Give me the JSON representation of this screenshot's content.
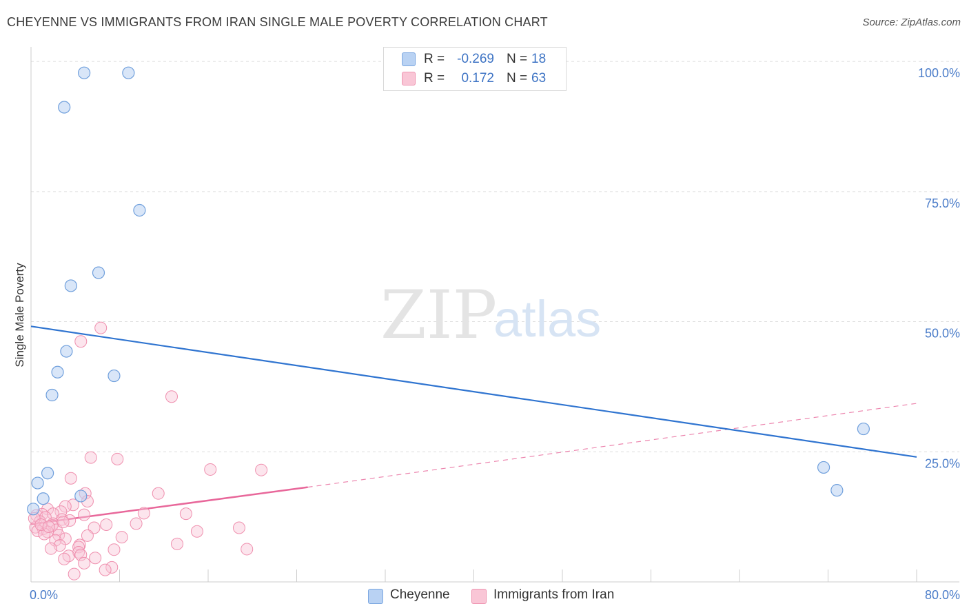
{
  "title": "CHEYENNE VS IMMIGRANTS FROM IRAN SINGLE MALE POVERTY CORRELATION CHART",
  "source": "Source: ZipAtlas.com",
  "watermark": {
    "zip": "ZIP",
    "atlas": "atlas"
  },
  "stats": [
    {
      "r_label": "R = ",
      "r_value": "-0.269",
      "n_label": "N = ",
      "n_value": "18",
      "fill": "#b9d2f3",
      "border": "#7aa6e0"
    },
    {
      "r_label": "R = ",
      "r_value": "0.172",
      "n_label": "N = ",
      "n_value": "63",
      "fill": "#f9c6d6",
      "border": "#ef94b1"
    }
  ],
  "legend": [
    {
      "label": "Cheyenne",
      "fill": "#b9d2f3",
      "border": "#7aa6e0"
    },
    {
      "label": "Immigrants from Iran",
      "fill": "#f9c6d6",
      "border": "#ef94b1"
    }
  ],
  "colors": {
    "blue_fill": "rgba(185,210,243,0.55)",
    "blue_stroke": "#6f9fdc",
    "blue_line": "#2f74d0",
    "pink_fill": "rgba(249,198,214,0.45)",
    "pink_stroke": "#ef8fae",
    "pink_line": "#e8679a",
    "grid": "#dddddd",
    "axis": "#cccccc"
  },
  "chart_data": {
    "type": "scatter",
    "title": "CHEYENNE VS IMMIGRANTS FROM IRAN SINGLE MALE POVERTY CORRELATION CHART",
    "xlabel": "",
    "ylabel": "Single Male Poverty",
    "xlim": [
      0,
      80
    ],
    "ylim": [
      0,
      102
    ],
    "x_tick_labels": [
      {
        "value": 0,
        "label": "0.0%"
      },
      {
        "value": 80,
        "label": "80.0%"
      }
    ],
    "y_tick_labels": [
      {
        "value": 25,
        "label": "25.0%"
      },
      {
        "value": 50,
        "label": "50.0%"
      },
      {
        "value": 75,
        "label": "75.0%"
      },
      {
        "value": 100,
        "label": "100.0%"
      }
    ],
    "y_gridlines": [
      25,
      50,
      75,
      100
    ],
    "series": [
      {
        "name": "Cheyenne",
        "points": [
          [
            4.8,
            97.8
          ],
          [
            8.8,
            97.8
          ],
          [
            3.0,
            91.2
          ],
          [
            9.8,
            71.4
          ],
          [
            6.1,
            59.4
          ],
          [
            3.6,
            56.9
          ],
          [
            3.2,
            44.3
          ],
          [
            2.4,
            40.3
          ],
          [
            7.5,
            39.6
          ],
          [
            1.9,
            35.9
          ],
          [
            1.5,
            20.9
          ],
          [
            0.6,
            19.0
          ],
          [
            1.1,
            16.0
          ],
          [
            4.5,
            16.5
          ],
          [
            0.2,
            14.0
          ],
          [
            71.6,
            22.0
          ],
          [
            75.2,
            29.4
          ],
          [
            72.8,
            17.6
          ]
        ],
        "trend": {
          "x": [
            0,
            80
          ],
          "y": [
            49.1,
            24.0
          ]
        }
      },
      {
        "name": "Immigrants from Iran",
        "points": [
          [
            6.3,
            48.8
          ],
          [
            4.5,
            46.2
          ],
          [
            12.7,
            35.6
          ],
          [
            5.4,
            23.9
          ],
          [
            7.8,
            23.6
          ],
          [
            16.2,
            21.6
          ],
          [
            20.8,
            21.5
          ],
          [
            3.6,
            19.9
          ],
          [
            11.5,
            17.0
          ],
          [
            4.9,
            17.0
          ],
          [
            5.1,
            15.5
          ],
          [
            3.8,
            14.8
          ],
          [
            3.1,
            14.5
          ],
          [
            1.5,
            14.0
          ],
          [
            2.7,
            13.5
          ],
          [
            1.0,
            13.0
          ],
          [
            2.0,
            13.1
          ],
          [
            10.2,
            13.2
          ],
          [
            14.0,
            13.1
          ],
          [
            4.8,
            12.9
          ],
          [
            0.5,
            12.8
          ],
          [
            1.3,
            12.4
          ],
          [
            2.8,
            12.0
          ],
          [
            3.5,
            11.8
          ],
          [
            0.8,
            11.6
          ],
          [
            2.0,
            11.2
          ],
          [
            6.8,
            11.0
          ],
          [
            1.9,
            10.8
          ],
          [
            9.5,
            11.2
          ],
          [
            0.4,
            10.5
          ],
          [
            1.1,
            10.2
          ],
          [
            5.7,
            10.4
          ],
          [
            18.8,
            10.4
          ],
          [
            2.3,
            10.0
          ],
          [
            0.6,
            9.8
          ],
          [
            1.5,
            9.6
          ],
          [
            15.0,
            9.7
          ],
          [
            1.2,
            9.2
          ],
          [
            2.5,
            9.0
          ],
          [
            5.1,
            8.9
          ],
          [
            8.2,
            8.6
          ],
          [
            3.1,
            8.3
          ],
          [
            2.2,
            8.0
          ],
          [
            13.2,
            7.3
          ],
          [
            4.4,
            7.1
          ],
          [
            2.6,
            7.0
          ],
          [
            4.3,
            6.7
          ],
          [
            1.8,
            6.4
          ],
          [
            7.5,
            6.2
          ],
          [
            19.5,
            6.3
          ],
          [
            4.3,
            5.7
          ],
          [
            4.5,
            5.2
          ],
          [
            3.4,
            5.0
          ],
          [
            5.8,
            4.6
          ],
          [
            3.0,
            4.4
          ],
          [
            4.8,
            3.6
          ],
          [
            7.3,
            2.8
          ],
          [
            6.7,
            2.3
          ],
          [
            3.9,
            1.5
          ],
          [
            0.3,
            12.2
          ],
          [
            0.9,
            11.0
          ],
          [
            1.6,
            10.6
          ],
          [
            2.9,
            11.5
          ]
        ],
        "trend_solid": {
          "x": [
            0,
            25
          ],
          "y": [
            11.1,
            18.2
          ]
        },
        "trend_dashed": {
          "x": [
            25,
            80
          ],
          "y": [
            18.2,
            34.3
          ]
        }
      }
    ]
  }
}
